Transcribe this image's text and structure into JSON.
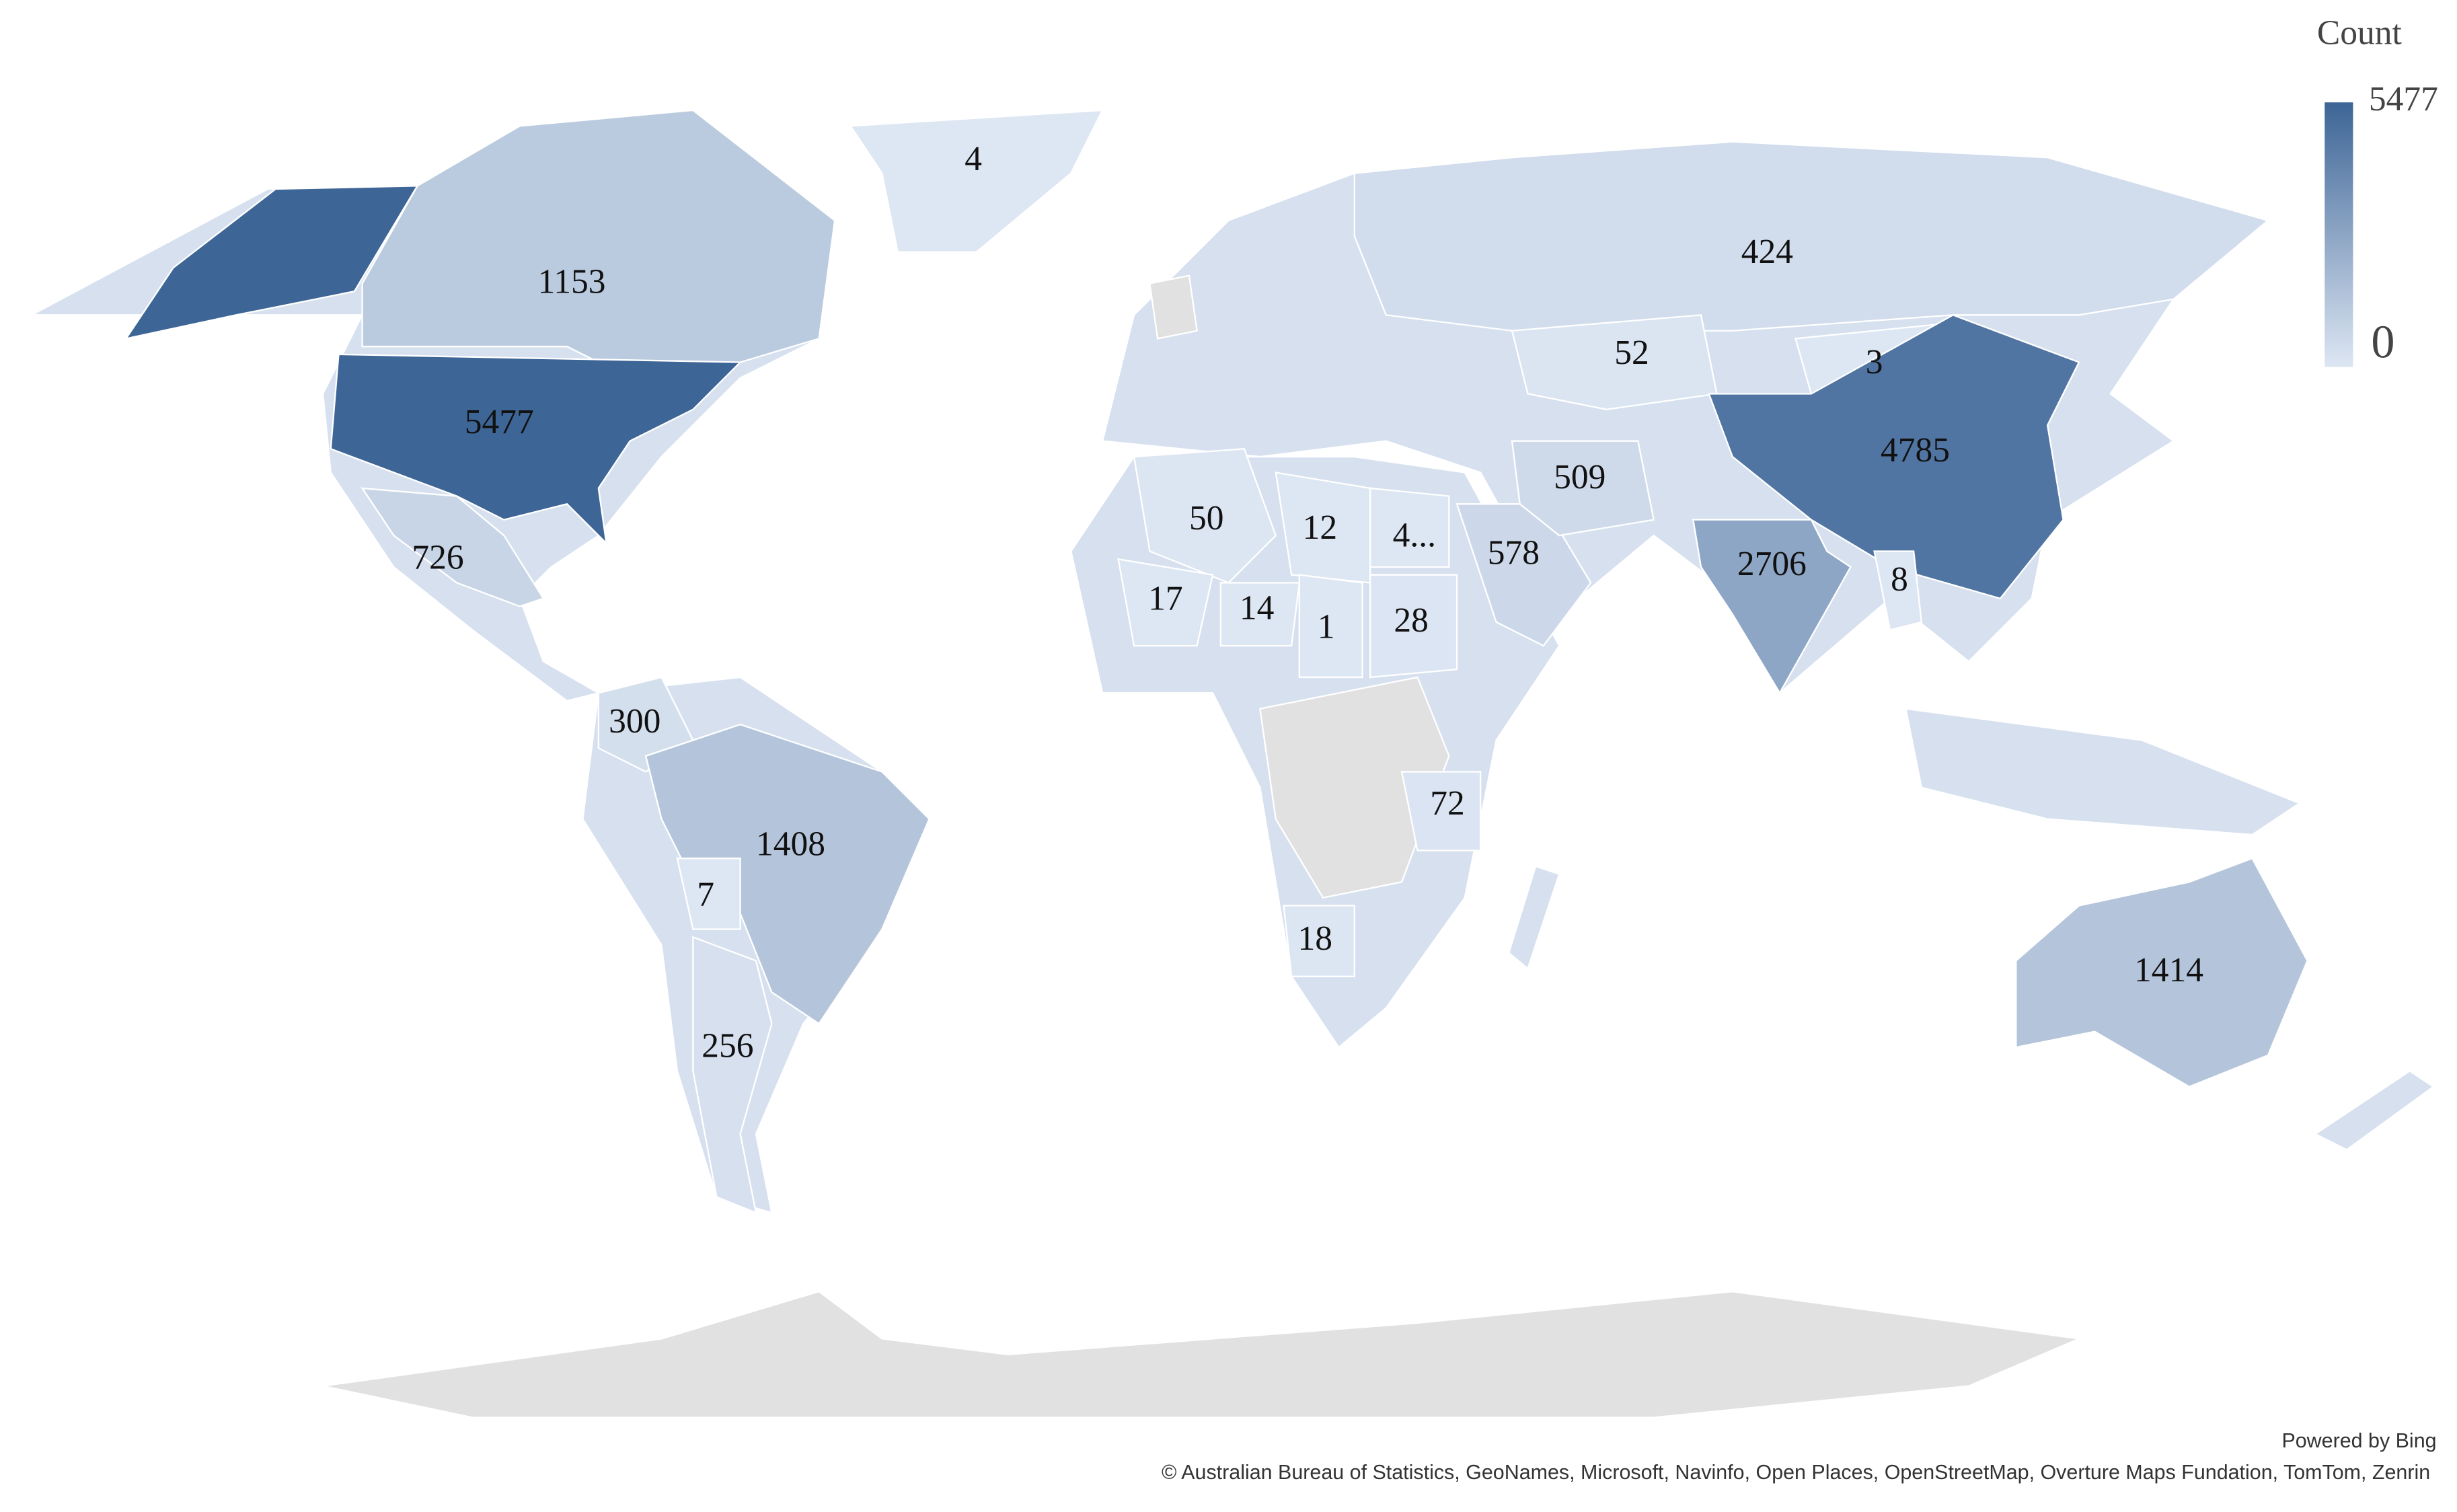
{
  "map": {
    "legend": {
      "title": "Count",
      "max": 5477,
      "min": 0,
      "colors": [
        "#dde6f3",
        "#3d6596"
      ]
    },
    "labels": [
      {
        "value": 4
      },
      {
        "value": 1153
      },
      {
        "value": 5477
      },
      {
        "value": 726
      },
      {
        "value": 300
      },
      {
        "value": 1408
      },
      {
        "value": 7
      },
      {
        "value": 256
      },
      {
        "value": 50
      },
      {
        "value": 12
      },
      {
        "label": "4..."
      },
      {
        "value": 578
      },
      {
        "value": 17
      },
      {
        "value": 14
      },
      {
        "value": 1
      },
      {
        "value": 28
      },
      {
        "value": 72
      },
      {
        "value": 18
      },
      {
        "value": 424
      },
      {
        "value": 52
      },
      {
        "value": 3
      },
      {
        "value": 509
      },
      {
        "value": 4785
      },
      {
        "value": 2706
      },
      {
        "value": 8
      },
      {
        "value": 1414
      }
    ],
    "credits": [
      "Powered by Bing",
      "© Australian Bureau of Statistics, GeoNames, Microsoft, Navinfo, Open Places, OpenStreetMap, Overture Maps Fundation, TomTom, Zenrin"
    ]
  }
}
